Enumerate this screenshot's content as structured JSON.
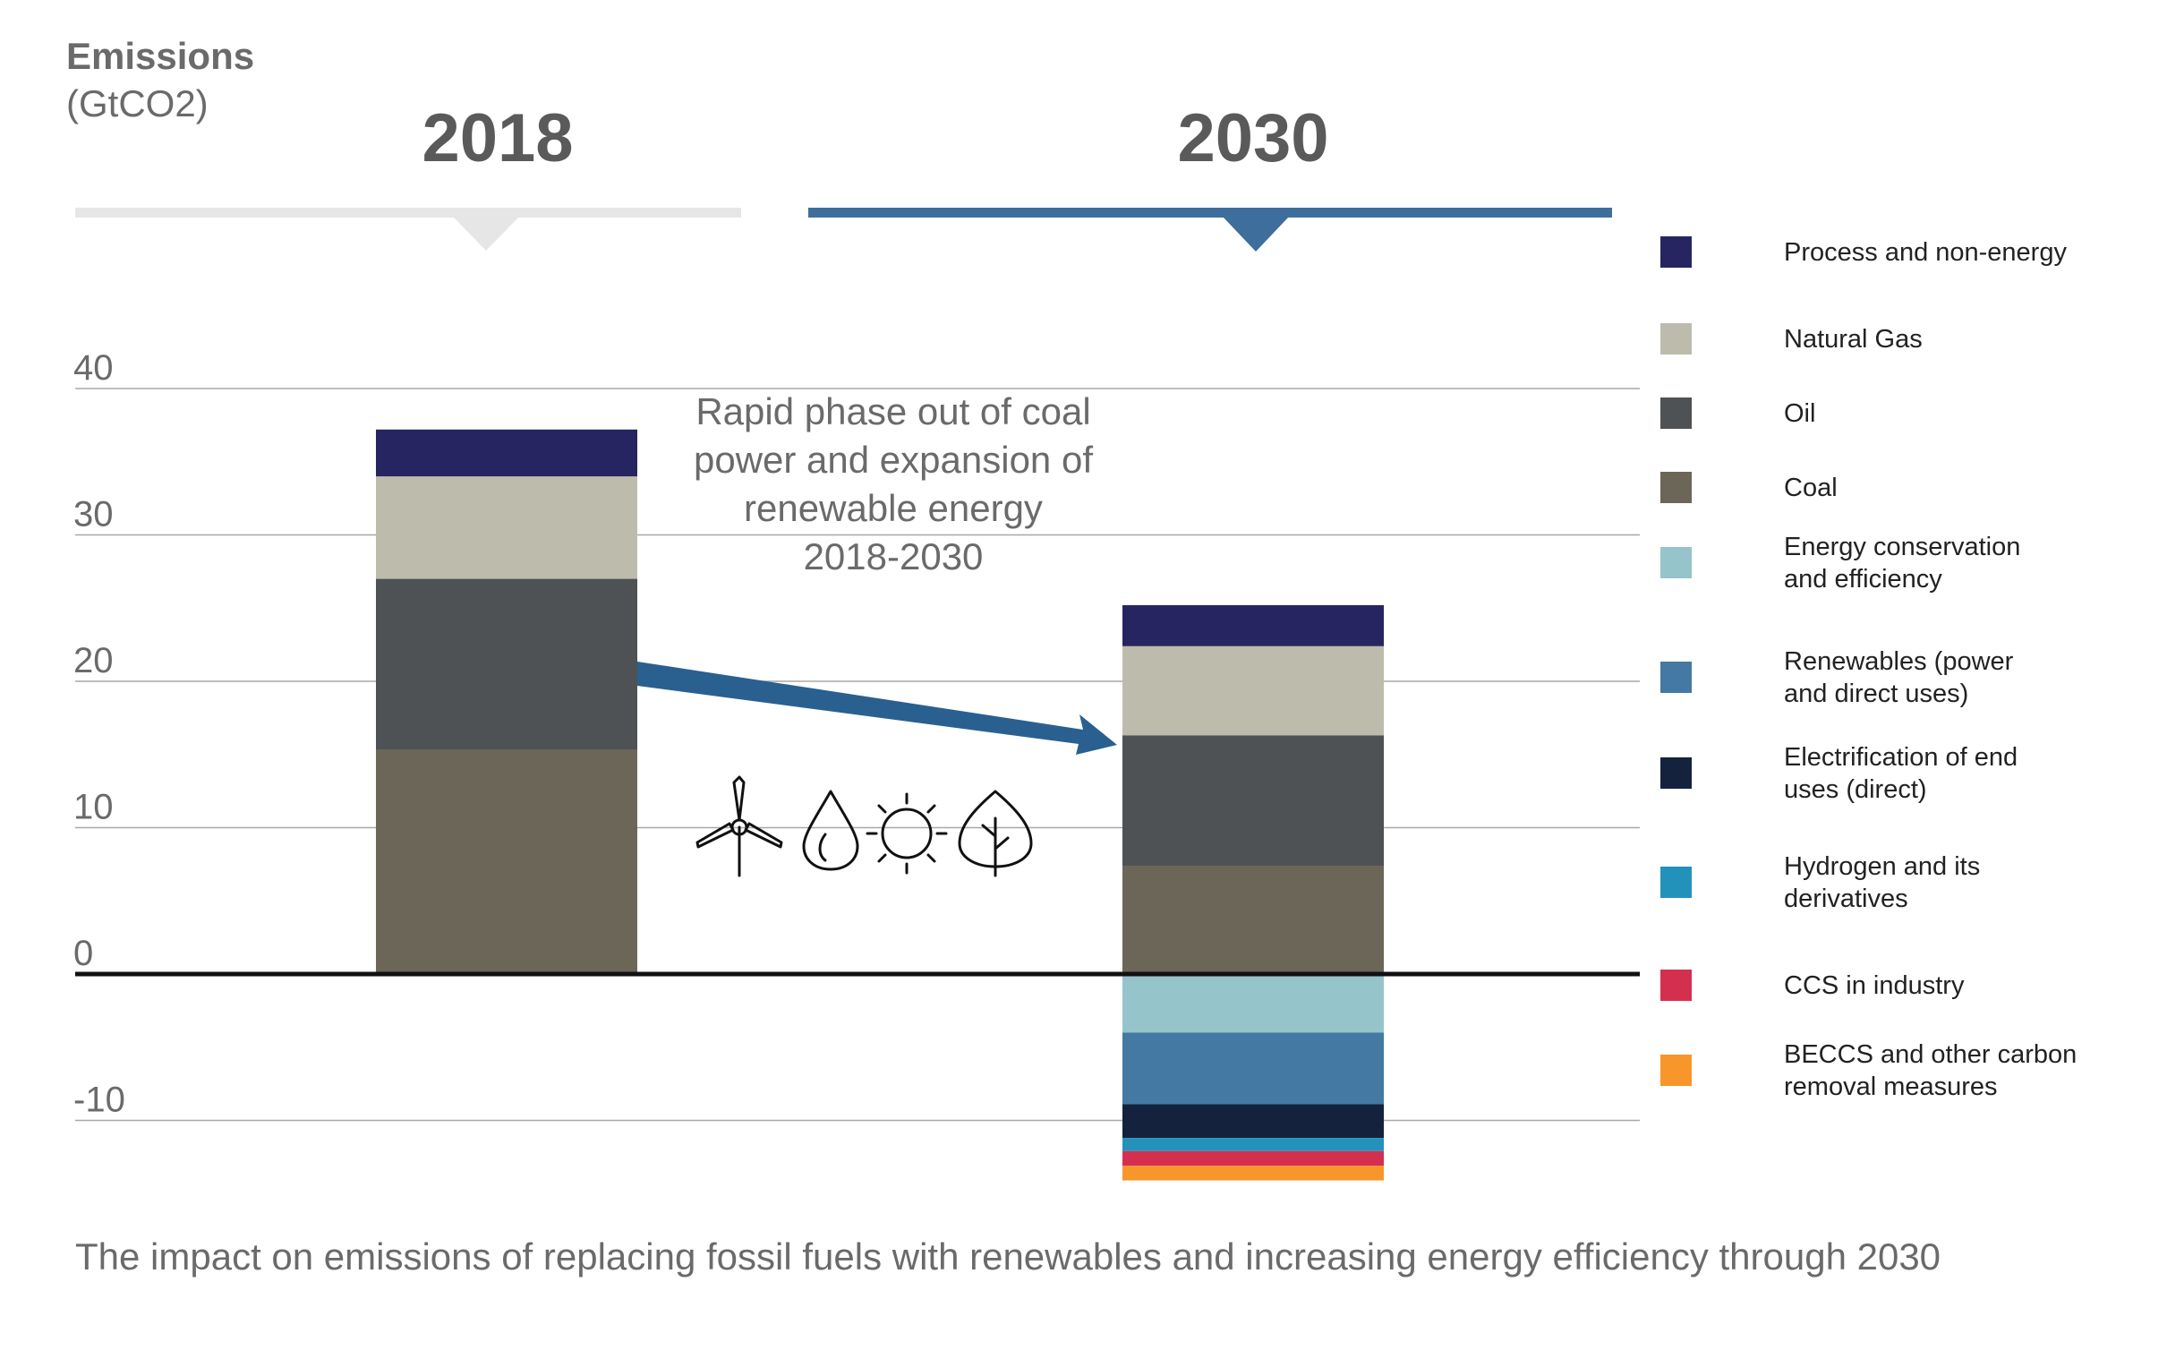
{
  "chart_data": {
    "type": "bar",
    "stacked": true,
    "ylabel": "Emissions",
    "ylabel_unit": "(GtCO2)",
    "categories": [
      "2018",
      "2030"
    ],
    "yticks": [
      40,
      30,
      20,
      10,
      0,
      -10
    ],
    "tick_labels": [
      "40",
      "30",
      "20",
      "10",
      "0",
      "-10"
    ],
    "ylim": [
      -14,
      40
    ],
    "grid": true,
    "legend_position": "right",
    "annotation": "Rapid phase out of coal power and expansion of renewable energy 2018-2030",
    "annotation_lines": [
      "Rapid phase out of coal",
      "power and expansion of",
      "renewable energy",
      "2018-2030"
    ],
    "caption": "The impact on emissions of replacing fossil fuels with renewables and increasing energy efficiency through 2030",
    "icons": [
      "wind-turbine-icon",
      "water-drop-icon",
      "sun-icon",
      "leaf-icon"
    ],
    "series": [
      {
        "name": "Process and non-energy",
        "label_lines": [
          "Process and non-energy"
        ],
        "color": "#262561",
        "values": [
          3.2,
          2.8
        ]
      },
      {
        "name": "Natural Gas",
        "label_lines": [
          "Natural Gas"
        ],
        "color": "#bdbbab",
        "values": [
          7.0,
          6.1
        ]
      },
      {
        "name": "Oil",
        "label_lines": [
          "Oil"
        ],
        "color": "#4e5254",
        "values": [
          11.7,
          8.9
        ]
      },
      {
        "name": "Coal",
        "label_lines": [
          "Coal"
        ],
        "color": "#6c6659",
        "values": [
          15.3,
          7.4
        ]
      },
      {
        "name": "Energy conservation and efficiency",
        "label_lines": [
          "Energy conservation",
          "and efficiency"
        ],
        "color": "#96c4cb",
        "values": [
          0,
          -4.0
        ]
      },
      {
        "name": "Renewables (power and direct uses)",
        "label_lines": [
          "Renewables (power",
          "and direct uses)"
        ],
        "color": "#4479a3",
        "values": [
          0,
          -4.9
        ]
      },
      {
        "name": "Electrification of end uses (direct)",
        "label_lines": [
          "Electrification of end",
          "uses (direct)"
        ],
        "color": "#15223d",
        "values": [
          0,
          -2.3
        ]
      },
      {
        "name": "Hydrogen and its derivatives",
        "label_lines": [
          "Hydrogen and its",
          "derivatives"
        ],
        "color": "#2392bb",
        "values": [
          0,
          -0.9
        ]
      },
      {
        "name": "CCS in industry",
        "label_lines": [
          "CCS in industry"
        ],
        "color": "#d52f50",
        "values": [
          0,
          -1.0
        ]
      },
      {
        "name": "BECCS and other carbon removal measures",
        "label_lines": [
          "BECCS and other carbon",
          "removal measures"
        ],
        "color": "#f7962a",
        "values": [
          0,
          -1.0
        ]
      }
    ],
    "category_header_colors": [
      "#e6e6e6",
      "#3d6e9c"
    ],
    "arrow_color": "#2a6090"
  }
}
